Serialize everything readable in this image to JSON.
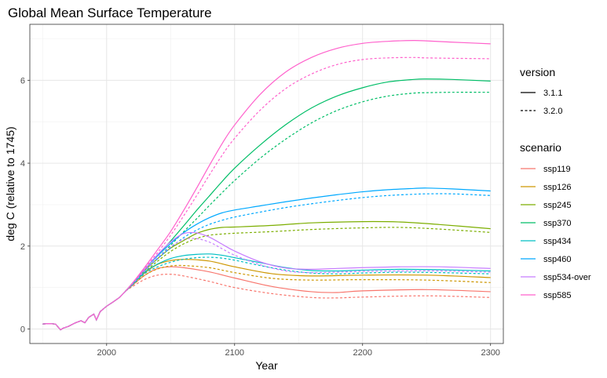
{
  "chart_data": {
    "type": "line",
    "title": "Global Mean Surface Temperature",
    "xlabel": "Year",
    "ylabel": "deg C (relative to 1745)",
    "xlim": [
      1940,
      2310
    ],
    "ylim": [
      -0.35,
      7.35
    ],
    "xticks": [
      "2000",
      "2100",
      "2200",
      "2300"
    ],
    "yticks": [
      "0",
      "2",
      "4",
      "6"
    ],
    "grid": true,
    "legend_placement": "right",
    "legend_version": {
      "title": "version",
      "entries": [
        {
          "label": "3.1.1",
          "dash": "solid"
        },
        {
          "label": "3.2.0",
          "dash": "dashed"
        }
      ]
    },
    "legend_scenario": {
      "title": "scenario",
      "entries": [
        {
          "label": "ssp119",
          "color": "#F8766D"
        },
        {
          "label": "ssp126",
          "color": "#CD9600"
        },
        {
          "label": "ssp245",
          "color": "#7CAE00"
        },
        {
          "label": "ssp370",
          "color": "#00BE67"
        },
        {
          "label": "ssp434",
          "color": "#00BFC4"
        },
        {
          "label": "ssp460",
          "color": "#00A9FF"
        },
        {
          "label": "ssp534-over",
          "color": "#C77CFF"
        },
        {
          "label": "ssp585",
          "color": "#FF61CC"
        }
      ]
    },
    "historical": {
      "x": [
        1950,
        1955,
        1960,
        1962,
        1964,
        1966,
        1970,
        1975,
        1980,
        1983,
        1986,
        1990,
        1992,
        1995,
        2000,
        2005,
        2010,
        2015
      ],
      "y": [
        0.12,
        0.13,
        0.12,
        0.05,
        -0.02,
        0.02,
        0.06,
        0.14,
        0.2,
        0.15,
        0.28,
        0.36,
        0.22,
        0.42,
        0.55,
        0.65,
        0.76,
        0.92
      ]
    },
    "series": [
      {
        "scenario": "ssp119",
        "version": "3.1.1",
        "x": [
          2015,
          2020,
          2030,
          2040,
          2050,
          2060,
          2080,
          2100,
          2130,
          2160,
          2180,
          2200,
          2250,
          2300
        ],
        "y": [
          0.92,
          1.05,
          1.3,
          1.46,
          1.5,
          1.48,
          1.38,
          1.23,
          1.02,
          0.9,
          0.88,
          0.92,
          0.95,
          0.9
        ]
      },
      {
        "scenario": "ssp119",
        "version": "3.2.0",
        "x": [
          2015,
          2020,
          2030,
          2040,
          2050,
          2060,
          2080,
          2100,
          2130,
          2160,
          2180,
          2200,
          2250,
          2300
        ],
        "y": [
          0.92,
          1.02,
          1.2,
          1.3,
          1.32,
          1.28,
          1.15,
          1.0,
          0.85,
          0.76,
          0.75,
          0.77,
          0.8,
          0.76
        ]
      },
      {
        "scenario": "ssp126",
        "version": "3.1.1",
        "x": [
          2015,
          2020,
          2030,
          2040,
          2050,
          2060,
          2080,
          2100,
          2130,
          2160,
          2200,
          2250,
          2300
        ],
        "y": [
          0.92,
          1.07,
          1.36,
          1.56,
          1.65,
          1.68,
          1.64,
          1.5,
          1.33,
          1.28,
          1.3,
          1.3,
          1.24
        ]
      },
      {
        "scenario": "ssp126",
        "version": "3.2.0",
        "x": [
          2015,
          2020,
          2030,
          2040,
          2050,
          2060,
          2080,
          2100,
          2130,
          2160,
          2200,
          2250,
          2300
        ],
        "y": [
          0.92,
          1.05,
          1.3,
          1.45,
          1.52,
          1.53,
          1.48,
          1.36,
          1.22,
          1.18,
          1.19,
          1.18,
          1.12
        ]
      },
      {
        "scenario": "ssp245",
        "version": "3.1.1",
        "x": [
          2015,
          2020,
          2030,
          2040,
          2050,
          2060,
          2070,
          2080,
          2090,
          2100,
          2130,
          2160,
          2200,
          2230,
          2260,
          2300
        ],
        "y": [
          0.92,
          1.08,
          1.42,
          1.7,
          1.95,
          2.13,
          2.3,
          2.4,
          2.45,
          2.46,
          2.5,
          2.56,
          2.59,
          2.58,
          2.52,
          2.42
        ]
      },
      {
        "scenario": "ssp245",
        "version": "3.2.0",
        "x": [
          2015,
          2020,
          2030,
          2040,
          2050,
          2060,
          2070,
          2080,
          2090,
          2100,
          2130,
          2160,
          2200,
          2230,
          2260,
          2300
        ],
        "y": [
          0.92,
          1.06,
          1.38,
          1.64,
          1.87,
          2.05,
          2.18,
          2.26,
          2.29,
          2.31,
          2.35,
          2.4,
          2.44,
          2.45,
          2.41,
          2.33
        ]
      },
      {
        "scenario": "ssp370",
        "version": "3.1.1",
        "x": [
          2015,
          2020,
          2030,
          2040,
          2050,
          2060,
          2070,
          2080,
          2090,
          2100,
          2120,
          2140,
          2160,
          2180,
          2200,
          2220,
          2240,
          2250,
          2270,
          2300
        ],
        "y": [
          0.92,
          1.1,
          1.45,
          1.78,
          2.12,
          2.48,
          2.85,
          3.2,
          3.55,
          3.88,
          4.44,
          4.93,
          5.33,
          5.62,
          5.82,
          5.96,
          6.02,
          6.03,
          6.02,
          5.98
        ]
      },
      {
        "scenario": "ssp370",
        "version": "3.2.0",
        "x": [
          2015,
          2020,
          2030,
          2040,
          2050,
          2060,
          2070,
          2080,
          2090,
          2100,
          2120,
          2140,
          2160,
          2180,
          2200,
          2220,
          2240,
          2250,
          2270,
          2300
        ],
        "y": [
          0.92,
          1.08,
          1.42,
          1.72,
          2.02,
          2.34,
          2.65,
          2.97,
          3.28,
          3.58,
          4.12,
          4.58,
          4.97,
          5.27,
          5.48,
          5.62,
          5.69,
          5.7,
          5.71,
          5.71
        ]
      },
      {
        "scenario": "ssp434",
        "version": "3.1.1",
        "x": [
          2015,
          2020,
          2030,
          2040,
          2050,
          2060,
          2070,
          2080,
          2090,
          2100,
          2120,
          2140,
          2160,
          2180,
          2200,
          2230,
          2260,
          2300
        ],
        "y": [
          0.92,
          1.07,
          1.38,
          1.57,
          1.7,
          1.77,
          1.8,
          1.81,
          1.78,
          1.72,
          1.6,
          1.48,
          1.41,
          1.4,
          1.42,
          1.44,
          1.43,
          1.4
        ]
      },
      {
        "scenario": "ssp434",
        "version": "3.2.0",
        "x": [
          2015,
          2020,
          2030,
          2040,
          2050,
          2060,
          2070,
          2080,
          2090,
          2100,
          2120,
          2140,
          2160,
          2180,
          2200,
          2230,
          2260,
          2300
        ],
        "y": [
          0.92,
          1.06,
          1.34,
          1.5,
          1.61,
          1.68,
          1.72,
          1.73,
          1.71,
          1.66,
          1.53,
          1.42,
          1.35,
          1.33,
          1.35,
          1.37,
          1.36,
          1.33
        ]
      },
      {
        "scenario": "ssp460",
        "version": "3.1.1",
        "x": [
          2015,
          2020,
          2030,
          2040,
          2050,
          2060,
          2070,
          2080,
          2090,
          2100,
          2120,
          2140,
          2160,
          2180,
          2200,
          2220,
          2240,
          2250,
          2270,
          2300
        ],
        "y": [
          0.92,
          1.09,
          1.45,
          1.77,
          2.06,
          2.32,
          2.52,
          2.68,
          2.8,
          2.87,
          2.97,
          3.07,
          3.16,
          3.24,
          3.31,
          3.36,
          3.39,
          3.4,
          3.38,
          3.33
        ]
      },
      {
        "scenario": "ssp460",
        "version": "3.2.0",
        "x": [
          2015,
          2020,
          2030,
          2040,
          2050,
          2060,
          2070,
          2080,
          2090,
          2100,
          2120,
          2140,
          2160,
          2180,
          2200,
          2220,
          2240,
          2250,
          2270,
          2300
        ],
        "y": [
          0.92,
          1.07,
          1.41,
          1.7,
          1.96,
          2.2,
          2.38,
          2.52,
          2.62,
          2.7,
          2.82,
          2.93,
          3.02,
          3.1,
          3.17,
          3.22,
          3.25,
          3.26,
          3.26,
          3.22
        ]
      },
      {
        "scenario": "ssp534-over",
        "version": "3.1.1",
        "x": [
          2015,
          2020,
          2030,
          2040,
          2050,
          2060,
          2070,
          2080,
          2090,
          2100,
          2120,
          2140,
          2160,
          2180,
          2200,
          2230,
          2260,
          2300
        ],
        "y": [
          0.92,
          1.1,
          1.45,
          1.8,
          2.1,
          2.3,
          2.32,
          2.22,
          2.05,
          1.88,
          1.62,
          1.47,
          1.44,
          1.46,
          1.48,
          1.5,
          1.5,
          1.46
        ]
      },
      {
        "scenario": "ssp534-over",
        "version": "3.2.0",
        "x": [
          2015,
          2020,
          2030,
          2040,
          2050,
          2060,
          2070,
          2080,
          2090,
          2100,
          2120,
          2140,
          2160,
          2180,
          2200,
          2230,
          2260,
          2300
        ],
        "y": [
          0.92,
          1.08,
          1.41,
          1.72,
          1.98,
          2.16,
          2.18,
          2.1,
          1.94,
          1.78,
          1.55,
          1.4,
          1.36,
          1.37,
          1.39,
          1.4,
          1.4,
          1.37
        ]
      },
      {
        "scenario": "ssp585",
        "version": "3.1.1",
        "x": [
          2015,
          2020,
          2030,
          2040,
          2050,
          2060,
          2070,
          2080,
          2090,
          2100,
          2120,
          2140,
          2160,
          2180,
          2200,
          2220,
          2240,
          2250,
          2270,
          2300
        ],
        "y": [
          0.92,
          1.1,
          1.5,
          1.92,
          2.35,
          2.85,
          3.38,
          3.93,
          4.46,
          4.92,
          5.66,
          6.2,
          6.55,
          6.77,
          6.89,
          6.94,
          6.96,
          6.95,
          6.92,
          6.88
        ]
      },
      {
        "scenario": "ssp585",
        "version": "3.2.0",
        "x": [
          2015,
          2020,
          2030,
          2040,
          2050,
          2060,
          2070,
          2080,
          2090,
          2100,
          2120,
          2140,
          2160,
          2180,
          2200,
          2220,
          2240,
          2250,
          2270,
          2300
        ],
        "y": [
          0.92,
          1.09,
          1.47,
          1.85,
          2.26,
          2.72,
          3.2,
          3.7,
          4.18,
          4.6,
          5.28,
          5.8,
          6.15,
          6.38,
          6.5,
          6.54,
          6.55,
          6.54,
          6.53,
          6.52
        ]
      }
    ]
  }
}
